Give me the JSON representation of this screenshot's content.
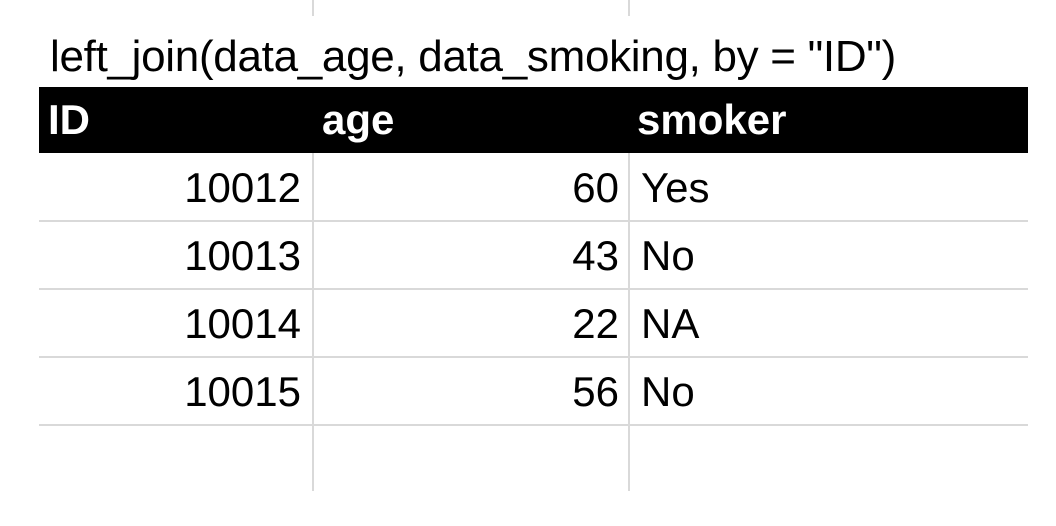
{
  "caption": "left_join(data_age, data_smoking, by = \"ID\")",
  "table": {
    "columns": [
      "ID",
      "age",
      "smoker"
    ],
    "rows": [
      {
        "id": "10012",
        "age": "60",
        "smoker": "Yes"
      },
      {
        "id": "10013",
        "age": "43",
        "smoker": "No"
      },
      {
        "id": "10014",
        "age": "22",
        "smoker": "NA"
      },
      {
        "id": "10015",
        "age": "56",
        "smoker": "No"
      }
    ]
  },
  "colors": {
    "header_bg": "#000000",
    "header_text": "#ffffff",
    "gridline": "#d9d9d9"
  }
}
